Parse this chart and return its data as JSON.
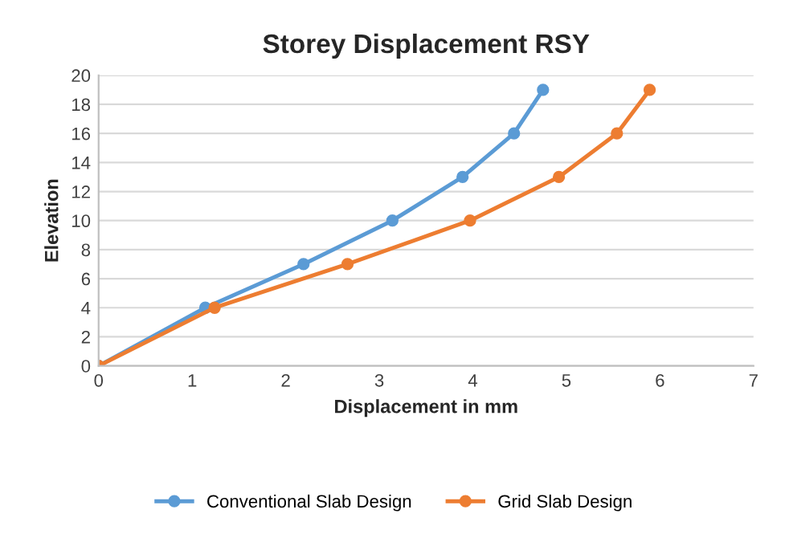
{
  "chart_data": {
    "type": "line",
    "title": "Storey Displacement RSY",
    "xlabel": "Displacement in mm",
    "ylabel": "Elevation",
    "series": [
      {
        "name": "Conventional Slab Design",
        "color": "#5b9bd5",
        "x": [
          0,
          1.14,
          2.19,
          3.14,
          3.89,
          4.44,
          4.75
        ],
        "values": [
          0,
          4,
          7,
          10,
          13,
          16,
          19
        ]
      },
      {
        "name": "Grid Slab Design",
        "color": "#ed7d31",
        "x": [
          0,
          1.24,
          2.66,
          3.97,
          4.92,
          5.54,
          5.89
        ],
        "values": [
          0,
          4,
          7,
          10,
          13,
          16,
          19
        ]
      }
    ],
    "xlim": [
      0,
      7
    ],
    "xticks": [
      0,
      1,
      2,
      3,
      4,
      5,
      6,
      7
    ],
    "ylim": [
      0,
      20
    ],
    "yticks": [
      0,
      2,
      4,
      6,
      8,
      10,
      12,
      14,
      16,
      18,
      20
    ],
    "grid": "y",
    "legend": "bottom",
    "marker": "circle",
    "line_style": "solid"
  }
}
